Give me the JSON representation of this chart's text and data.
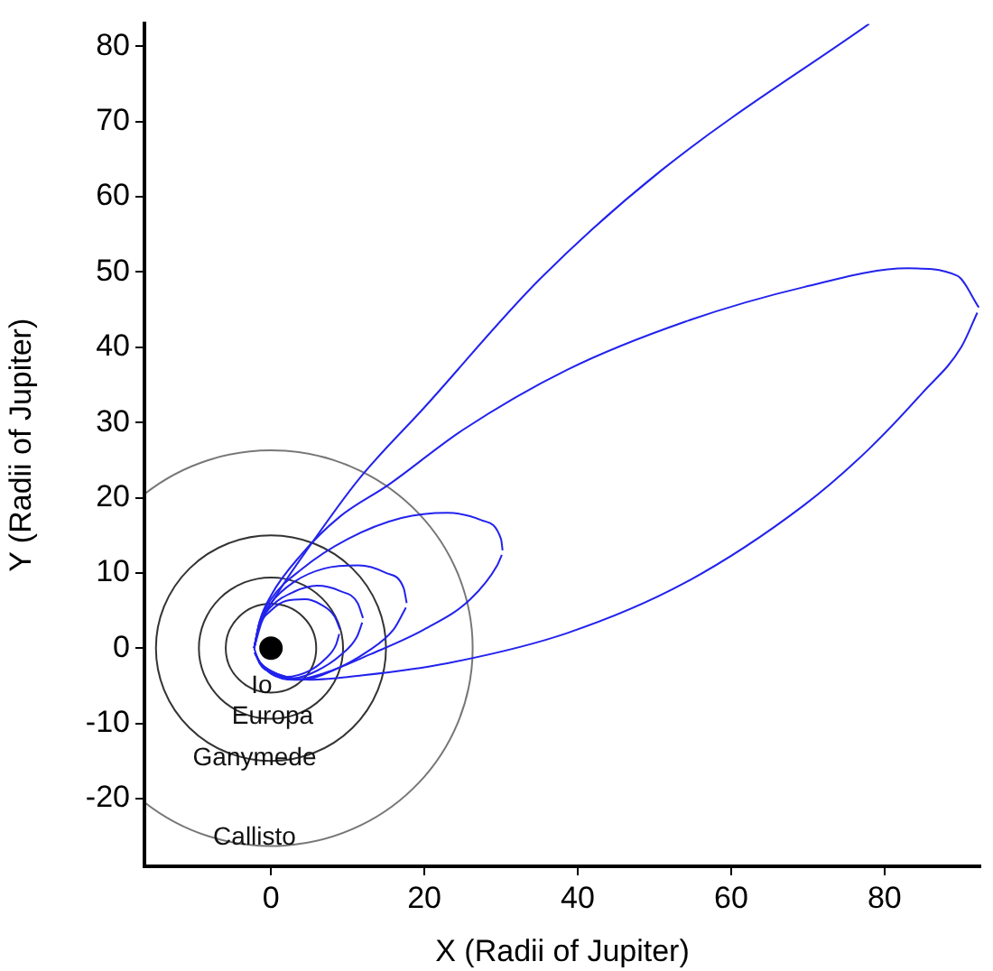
{
  "chart_data": {
    "type": "line",
    "xlabel": "X (Radii of Jupiter)",
    "ylabel": "Y (Radii of Jupiter)",
    "xlim": [
      -16.5,
      92.5
    ],
    "ylim": [
      -29,
      83
    ],
    "xticks": [
      0,
      20,
      40,
      60,
      80
    ],
    "yticks": [
      -20,
      -10,
      0,
      10,
      20,
      30,
      40,
      50,
      60,
      70,
      80
    ],
    "grid": false,
    "series": [
      {
        "type": "line",
        "color": "#2222ee",
        "x": [
          -2.2,
          -1.5,
          0,
          2,
          4.4,
          6.5,
          8.3,
          9
        ],
        "values": [
          0,
          3,
          5,
          6.3,
          6.5,
          5.8,
          4.2,
          2.5
        ]
      },
      {
        "type": "line",
        "color": "#2222ee",
        "x": [
          -2.1,
          -1.5,
          0,
          2,
          5,
          7,
          8.5,
          8.9
        ],
        "values": [
          -0.6,
          -1.8,
          -3,
          -3.8,
          -3,
          -1.5,
          0.5,
          1.9
        ]
      },
      {
        "type": "line",
        "color": "#2222ee",
        "x": [
          -2.2,
          -1.5,
          0,
          3,
          6,
          9,
          11.3,
          12
        ],
        "values": [
          0,
          3.2,
          5.5,
          7.5,
          8.3,
          7.6,
          6,
          4
        ]
      },
      {
        "type": "line",
        "color": "#2222ee",
        "x": [
          -2.1,
          -1.5,
          0,
          3,
          6,
          9,
          11.2,
          11.9
        ],
        "values": [
          -0.6,
          -1.8,
          -3.2,
          -4,
          -3,
          -1,
          1.5,
          3.4
        ]
      },
      {
        "type": "line",
        "color": "#2222ee",
        "x": [
          -2.2,
          -1.5,
          0,
          3,
          7,
          11.4,
          15,
          17.3,
          17.7
        ],
        "values": [
          0,
          3.3,
          6,
          8.8,
          10.6,
          11,
          10,
          8,
          6
        ]
      },
      {
        "type": "line",
        "color": "#2222ee",
        "x": [
          -2.1,
          -1.5,
          0,
          4,
          8,
          12.5,
          16,
          17.6
        ],
        "values": [
          -0.6,
          -1.8,
          -3.3,
          -4.2,
          -3,
          -0.5,
          2.5,
          5.4
        ]
      },
      {
        "type": "line",
        "color": "#2222ee",
        "x": [
          -2.2,
          -1.5,
          0,
          4,
          10,
          17,
          23,
          27.5,
          30,
          30.2
        ],
        "values": [
          0,
          3.4,
          6.5,
          10.5,
          14.5,
          17.3,
          18,
          17,
          14.5,
          13
        ]
      },
      {
        "type": "line",
        "color": "#2222ee",
        "x": [
          -2.1,
          -1.5,
          0,
          3,
          7,
          13,
          20,
          26,
          29.5,
          30.1
        ],
        "values": [
          -0.6,
          -1.8,
          -3.4,
          -4.2,
          -3.3,
          -0.8,
          2.5,
          6.5,
          11,
          12.4
        ]
      },
      {
        "type": "line",
        "color": "#2222ee",
        "x": [
          -2.2,
          -1.5,
          0,
          4,
          9,
          15.3,
          25,
          38.6,
          54,
          69.5,
          83,
          89.5,
          92.3
        ],
        "values": [
          0,
          3.5,
          7,
          12.5,
          17.5,
          21.7,
          29,
          37,
          43.4,
          48,
          50.5,
          49.5,
          45.3
        ]
      },
      {
        "type": "line",
        "color": "#2222ee",
        "x": [
          -2.1,
          -1.5,
          1,
          5,
          12,
          23,
          38.6,
          54,
          69.5,
          78,
          85,
          90,
          92.1
        ],
        "values": [
          -0.6,
          -1.8,
          -3.5,
          -4.2,
          -3.6,
          -2,
          2,
          8.7,
          19,
          26.5,
          34,
          40,
          44.6
        ]
      },
      {
        "type": "line",
        "color": "#2222ee",
        "x": [
          -2.2,
          -1.2,
          1,
          5,
          11.4,
          20,
          35,
          51,
          78
        ],
        "values": [
          0,
          3.5,
          7.5,
          13.5,
          22.4,
          32,
          49,
          63.6,
          83
        ]
      },
      {
        "type": "line",
        "color": "#2222ee",
        "x": [
          -2.2,
          -1.5,
          0.5,
          2
        ],
        "values": [
          0,
          -2,
          -3.3,
          -3.8
        ]
      },
      {
        "type": "scatter",
        "color": "#000000",
        "x": [
          0
        ],
        "values": [
          0
        ]
      }
    ],
    "annotations": [
      "Io",
      "Europa",
      "Ganymede",
      "Callisto"
    ]
  }
}
